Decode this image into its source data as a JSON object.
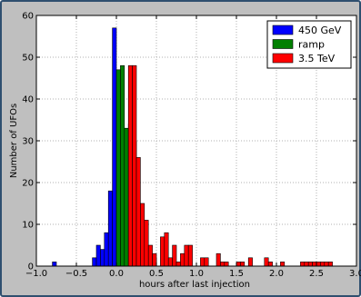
{
  "colors": {
    "frame_bg": "#bfbfbf",
    "frame_border": "#2f4f6f",
    "plot_bg": "#ffffff",
    "grid": "#b0b0b0"
  },
  "chart_data": {
    "type": "bar",
    "xlabel": "hours after last injection",
    "ylabel": "Number of UFOs",
    "xlim": [
      -1.0,
      3.0
    ],
    "ylim": [
      0,
      60
    ],
    "xticks": [
      "-1.0",
      "-0.5",
      "0.0",
      "0.5",
      "1.0",
      "1.5",
      "2.0",
      "2.5",
      "3.0"
    ],
    "yticks": [
      "0",
      "10",
      "20",
      "30",
      "40",
      "50",
      "60"
    ],
    "grid": true,
    "legend_position": "top-right",
    "bin_width": 0.05,
    "series": [
      {
        "name": "450 GeV",
        "color": "#0000ff",
        "bins": [
          {
            "x": -0.8,
            "y": 1
          },
          {
            "x": -0.3,
            "y": 2
          },
          {
            "x": -0.25,
            "y": 5
          },
          {
            "x": -0.2,
            "y": 4
          },
          {
            "x": -0.15,
            "y": 8
          },
          {
            "x": -0.1,
            "y": 18
          },
          {
            "x": -0.05,
            "y": 57
          },
          {
            "x": 0.0,
            "y": 44
          },
          {
            "x": 0.05,
            "y": 15
          },
          {
            "x": 0.1,
            "y": 7
          },
          {
            "x": 0.15,
            "y": 1
          },
          {
            "x": 0.2,
            "y": 1
          },
          {
            "x": 0.3,
            "y": 1
          }
        ]
      },
      {
        "name": "ramp",
        "color": "#008000",
        "bins": [
          {
            "x": 0.0,
            "y": 47
          },
          {
            "x": 0.05,
            "y": 48
          },
          {
            "x": 0.1,
            "y": 33
          },
          {
            "x": 0.15,
            "y": 34
          },
          {
            "x": 0.2,
            "y": 30
          },
          {
            "x": 0.25,
            "y": 15
          },
          {
            "x": 0.3,
            "y": 4
          },
          {
            "x": 0.35,
            "y": 2
          },
          {
            "x": 0.4,
            "y": 1
          },
          {
            "x": 0.45,
            "y": 2
          }
        ]
      },
      {
        "name": "3.5 TeV",
        "color": "#ff0000",
        "bins": [
          {
            "x": 0.15,
            "y": 48
          },
          {
            "x": 0.2,
            "y": 48
          },
          {
            "x": 0.25,
            "y": 26
          },
          {
            "x": 0.3,
            "y": 15
          },
          {
            "x": 0.35,
            "y": 11
          },
          {
            "x": 0.4,
            "y": 5
          },
          {
            "x": 0.45,
            "y": 3
          },
          {
            "x": 0.55,
            "y": 7
          },
          {
            "x": 0.6,
            "y": 8
          },
          {
            "x": 0.65,
            "y": 2
          },
          {
            "x": 0.7,
            "y": 5
          },
          {
            "x": 0.75,
            "y": 1
          },
          {
            "x": 0.8,
            "y": 3
          },
          {
            "x": 0.85,
            "y": 5
          },
          {
            "x": 0.9,
            "y": 5
          },
          {
            "x": 1.05,
            "y": 2
          },
          {
            "x": 1.1,
            "y": 2
          },
          {
            "x": 1.25,
            "y": 3
          },
          {
            "x": 1.3,
            "y": 1
          },
          {
            "x": 1.35,
            "y": 1
          },
          {
            "x": 1.5,
            "y": 1
          },
          {
            "x": 1.55,
            "y": 1
          },
          {
            "x": 1.65,
            "y": 2
          },
          {
            "x": 1.85,
            "y": 2
          },
          {
            "x": 1.9,
            "y": 1
          },
          {
            "x": 2.05,
            "y": 1
          },
          {
            "x": 2.3,
            "y": 1
          },
          {
            "x": 2.35,
            "y": 1
          },
          {
            "x": 2.4,
            "y": 1
          },
          {
            "x": 2.45,
            "y": 1
          },
          {
            "x": 2.5,
            "y": 1
          },
          {
            "x": 2.55,
            "y": 1
          },
          {
            "x": 2.6,
            "y": 1
          },
          {
            "x": 2.65,
            "y": 1
          }
        ]
      }
    ]
  }
}
